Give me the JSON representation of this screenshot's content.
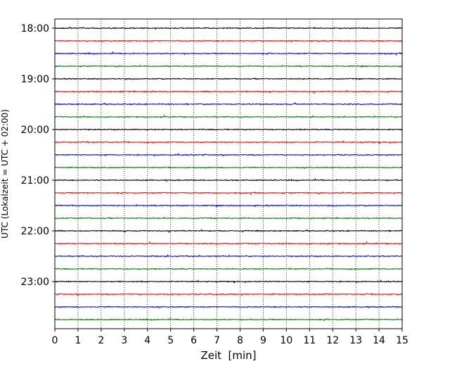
{
  "chart_data": {
    "type": "line",
    "title": "",
    "xlabel": "Zeit  [min]",
    "ylabel": "UTC (Lokalzeit = UTC + 02:00)",
    "xlim": [
      0,
      15
    ],
    "x_ticks": [
      0,
      1,
      2,
      3,
      4,
      5,
      6,
      7,
      8,
      9,
      10,
      11,
      12,
      13,
      14,
      15
    ],
    "y_ticks": [
      "18:00",
      "19:00",
      "20:00",
      "21:00",
      "22:00",
      "23:00"
    ],
    "grid": "vertical-dotted",
    "legend": "none",
    "trace_colors": [
      "#000000",
      "#ff0000",
      "#0000ff",
      "#008000"
    ],
    "traces": [
      {
        "start": "18:00",
        "color": "#000000"
      },
      {
        "start": "18:15",
        "color": "#ff0000"
      },
      {
        "start": "18:30",
        "color": "#0000ff"
      },
      {
        "start": "18:45",
        "color": "#008000"
      },
      {
        "start": "19:00",
        "color": "#000000"
      },
      {
        "start": "19:15",
        "color": "#ff0000"
      },
      {
        "start": "19:30",
        "color": "#0000ff"
      },
      {
        "start": "19:45",
        "color": "#008000"
      },
      {
        "start": "20:00",
        "color": "#000000"
      },
      {
        "start": "20:15",
        "color": "#ff0000"
      },
      {
        "start": "20:30",
        "color": "#0000ff"
      },
      {
        "start": "20:45",
        "color": "#008000"
      },
      {
        "start": "21:00",
        "color": "#000000"
      },
      {
        "start": "21:15",
        "color": "#ff0000"
      },
      {
        "start": "21:30",
        "color": "#0000ff"
      },
      {
        "start": "21:45",
        "color": "#008000"
      },
      {
        "start": "22:00",
        "color": "#000000"
      },
      {
        "start": "22:15",
        "color": "#ff0000"
      },
      {
        "start": "22:30",
        "color": "#0000ff"
      },
      {
        "start": "22:45",
        "color": "#008000"
      },
      {
        "start": "23:00",
        "color": "#000000"
      },
      {
        "start": "23:15",
        "color": "#ff0000"
      },
      {
        "start": "23:30",
        "color": "#0000ff"
      },
      {
        "start": "23:45",
        "color": "#008000"
      }
    ]
  }
}
